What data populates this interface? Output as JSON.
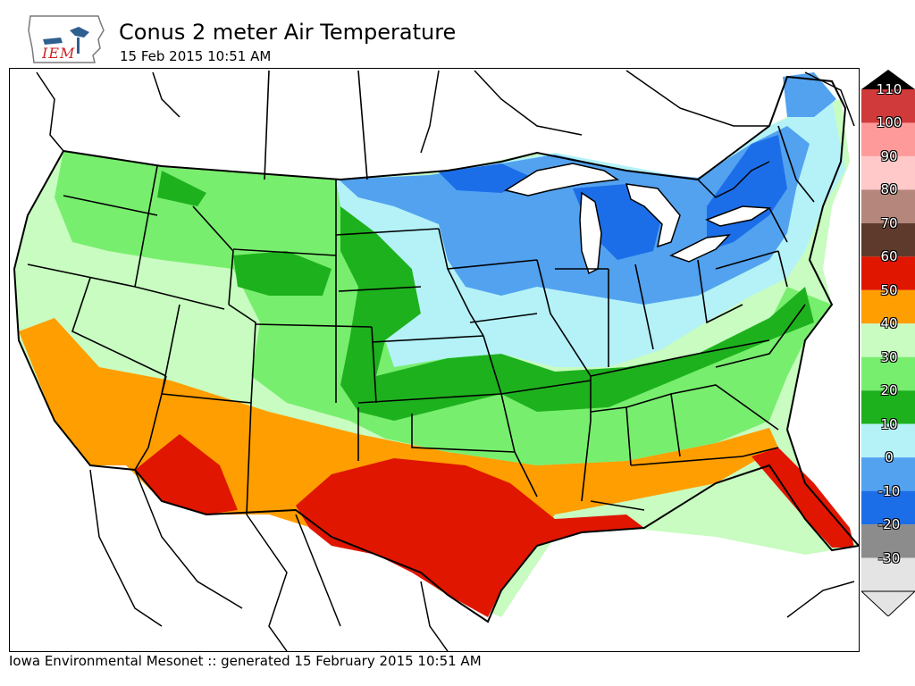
{
  "header": {
    "logo_text": "IEM",
    "title": "Conus 2 meter Air Temperature",
    "subtitle": "15 Feb 2015 10:51 AM"
  },
  "footer": {
    "text": "Iowa Environmental Mesonet :: generated 15 February 2015 10:51 AM"
  },
  "legend": {
    "levels": [
      {
        "label": "110",
        "color": "#d03a3a"
      },
      {
        "label": "100",
        "color": "#ff9a9a"
      },
      {
        "label": "90",
        "color": "#ffc9c9"
      },
      {
        "label": "80",
        "color": "#b5867c"
      },
      {
        "label": "70",
        "color": "#5e3a2c"
      },
      {
        "label": "60",
        "color": "#e01600"
      },
      {
        "label": "50",
        "color": "#ff9e00"
      },
      {
        "label": "40",
        "color": "#c8fcc0"
      },
      {
        "label": "30",
        "color": "#78ee6e"
      },
      {
        "label": "20",
        "color": "#1eb11e"
      },
      {
        "label": "10",
        "color": "#b4f2f8"
      },
      {
        "label": "0",
        "color": "#52a2f0"
      },
      {
        "label": "-10",
        "color": "#1c6ee8"
      },
      {
        "label": "-20",
        "color": "#8c8c8c"
      },
      {
        "label": "-30",
        "color": "#e4e4e4"
      }
    ]
  },
  "colors": {
    "lt_green": "#c8fcc0",
    "green": "#78ee6e",
    "dk_green": "#1eb11e",
    "cyan": "#b4f2f8",
    "lt_blue": "#52a2f0",
    "blue": "#1c6ee8",
    "orange": "#ff9e00",
    "red": "#e01600",
    "water": "#ffffff",
    "boundary": "#000000"
  }
}
